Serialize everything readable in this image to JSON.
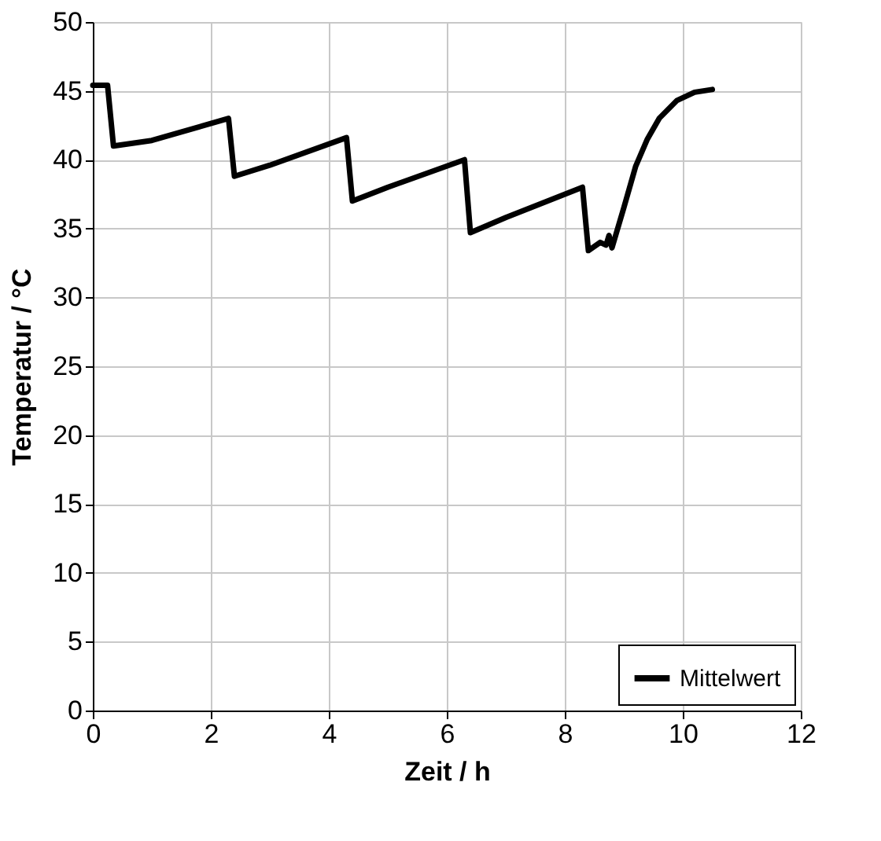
{
  "chart_data": {
    "type": "line",
    "xlabel": "Zeit / h",
    "ylabel": "Temperatur / °C",
    "xlim": [
      0,
      12
    ],
    "xticks": [
      0,
      2,
      4,
      6,
      8,
      10,
      12
    ],
    "ylim": [
      0,
      50
    ],
    "yticks": [
      0,
      5,
      10,
      15,
      20,
      25,
      30,
      35,
      40,
      45,
      50
    ],
    "grid": true,
    "legend": "bottom right",
    "line_style": "solid",
    "marker": "none",
    "series": [
      {
        "name": "Mittelwert",
        "color": "#000000",
        "x": [
          0,
          0.25,
          0.35,
          1,
          2.3,
          2.4,
          3,
          4.3,
          4.4,
          5,
          6.3,
          6.4,
          7,
          8.3,
          8.4,
          8.6,
          8.7,
          8.75,
          8.8,
          9,
          9.2,
          9.4,
          9.6,
          9.9,
          10.2,
          10.5
        ],
        "values": [
          45.4,
          45.4,
          41.0,
          41.4,
          43.0,
          38.8,
          39.6,
          41.6,
          37.0,
          38.0,
          40.0,
          34.7,
          35.8,
          38.0,
          33.4,
          34.0,
          33.8,
          34.5,
          33.6,
          36.5,
          39.5,
          41.5,
          43.0,
          44.3,
          44.9,
          45.1
        ]
      }
    ]
  }
}
